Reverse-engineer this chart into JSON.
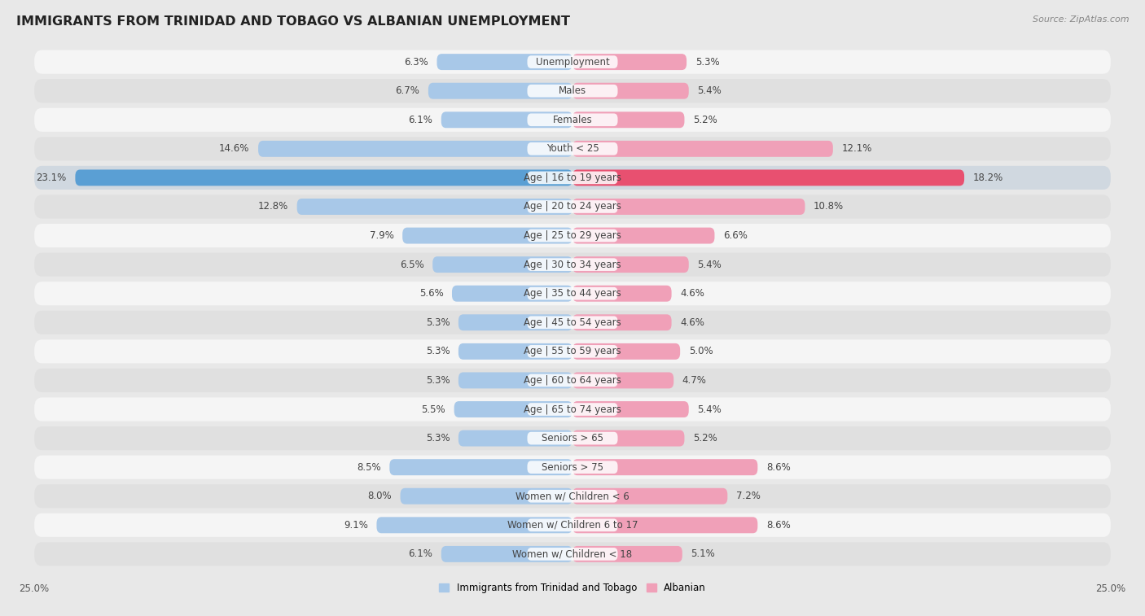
{
  "title": "IMMIGRANTS FROM TRINIDAD AND TOBAGO VS ALBANIAN UNEMPLOYMENT",
  "source": "Source: ZipAtlas.com",
  "categories": [
    "Unemployment",
    "Males",
    "Females",
    "Youth < 25",
    "Age | 16 to 19 years",
    "Age | 20 to 24 years",
    "Age | 25 to 29 years",
    "Age | 30 to 34 years",
    "Age | 35 to 44 years",
    "Age | 45 to 54 years",
    "Age | 55 to 59 years",
    "Age | 60 to 64 years",
    "Age | 65 to 74 years",
    "Seniors > 65",
    "Seniors > 75",
    "Women w/ Children < 6",
    "Women w/ Children 6 to 17",
    "Women w/ Children < 18"
  ],
  "left_values": [
    6.3,
    6.7,
    6.1,
    14.6,
    23.1,
    12.8,
    7.9,
    6.5,
    5.6,
    5.3,
    5.3,
    5.3,
    5.5,
    5.3,
    8.5,
    8.0,
    9.1,
    6.1
  ],
  "right_values": [
    5.3,
    5.4,
    5.2,
    12.1,
    18.2,
    10.8,
    6.6,
    5.4,
    4.6,
    4.6,
    5.0,
    4.7,
    5.4,
    5.2,
    8.6,
    7.2,
    8.6,
    5.1
  ],
  "left_color_normal": "#a8c8e8",
  "right_color_normal": "#f0a0b8",
  "left_color_highlight": "#5a9fd4",
  "right_color_highlight": "#e85070",
  "highlight_rows": [
    4
  ],
  "axis_max": 25.0,
  "bg_color": "#e8e8e8",
  "row_bg_odd": "#f5f5f5",
  "row_bg_even": "#e0e0e0",
  "row_bg_highlight": "#d8d8d8",
  "legend_left": "Immigrants from Trinidad and Tobago",
  "legend_right": "Albanian",
  "title_fontsize": 11.5,
  "label_fontsize": 8.5,
  "source_fontsize": 8.0
}
